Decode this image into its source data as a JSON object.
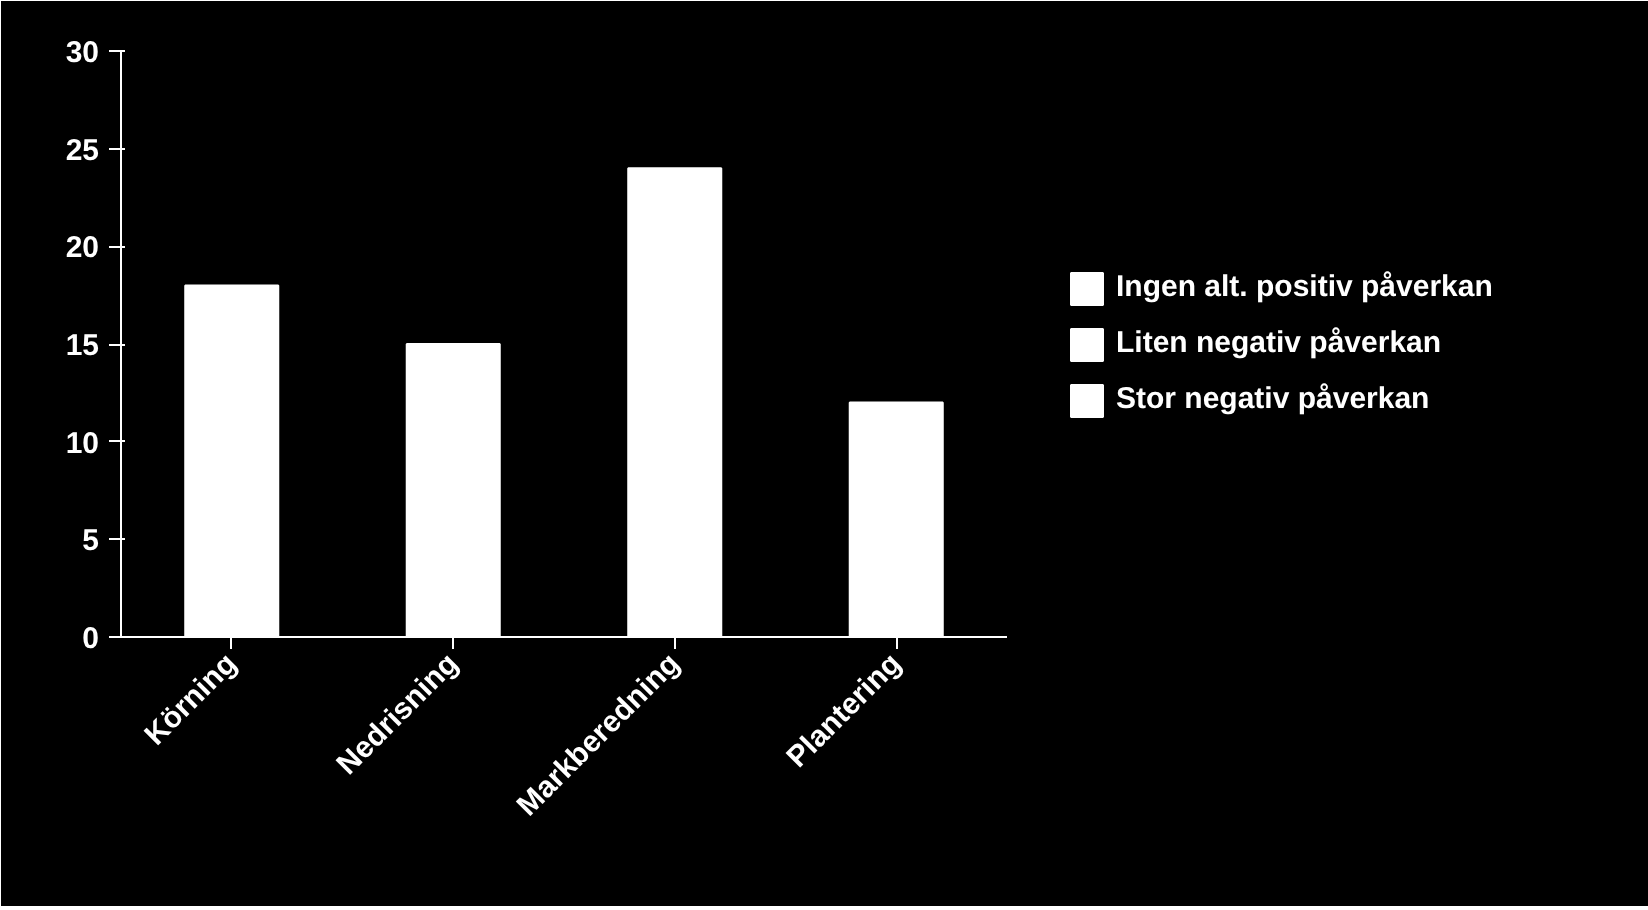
{
  "chart_data": {
    "type": "bar",
    "categories": [
      "Körning",
      "Nedrisning",
      "Markberedning",
      "Plantering"
    ],
    "series": [
      {
        "name": "Ingen alt. positiv påverkan",
        "color": "#ffffff",
        "values": [
          18,
          15,
          24,
          12
        ]
      },
      {
        "name": "Liten negativ påverkan",
        "color": "#ffffff",
        "values": [
          null,
          null,
          null,
          null
        ]
      },
      {
        "name": "Stor negativ påverkan",
        "color": "#ffffff",
        "values": [
          null,
          null,
          null,
          null
        ]
      }
    ],
    "stacked": true,
    "ylim": [
      0,
      30
    ],
    "yticks": [
      0,
      5,
      10,
      15,
      20,
      25,
      30
    ],
    "grid": false,
    "legend": "right"
  }
}
